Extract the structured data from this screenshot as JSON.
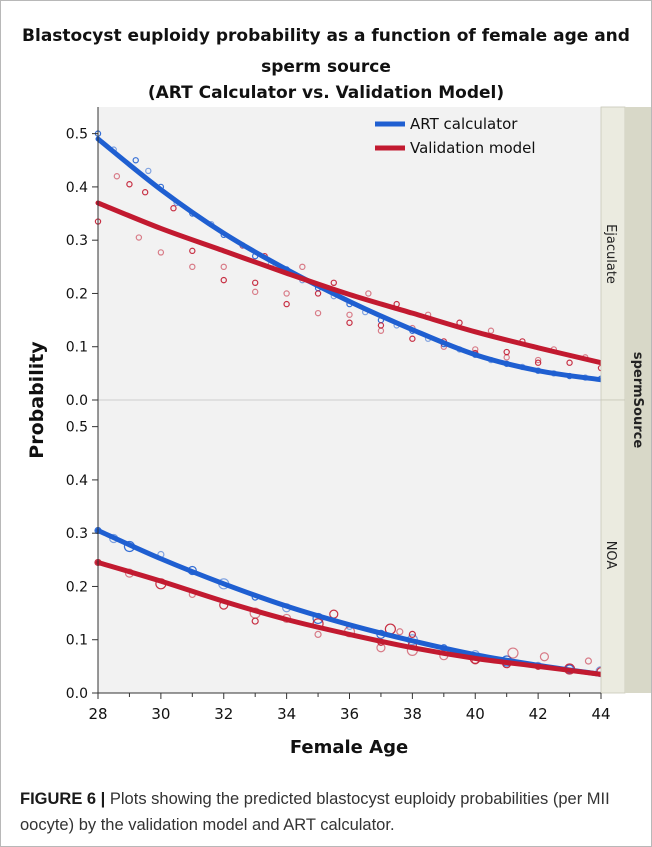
{
  "title_line1": "Blastocyst euploidy probability as a function of female age and",
  "title_line2": "sperm source",
  "title_line3": "(ART Calculator vs. Validation Model)",
  "caption_label": "FIGURE 6 |",
  "caption_text": " Plots showing the predicted blastocyst euploidy probabilities (per MII oocyte) by the validation model and ART calculator.",
  "colors": {
    "art": "#1f5fd1",
    "validation": "#c21a30",
    "panel_bg": "#f2f2f2",
    "strip_bg": "#ebebe0",
    "strip_title_bg": "#d8d8c8"
  },
  "chart_data": {
    "type": "scatter",
    "title": "Blastocyst euploidy probability as a function of female age and sperm source (ART Calculator vs. Validation Model)",
    "xlabel": "Female Age",
    "ylabel": "Probability",
    "xlim": [
      28,
      44
    ],
    "x_ticks": [
      28,
      30,
      32,
      34,
      36,
      38,
      40,
      42,
      44
    ],
    "y_ticks": [
      "0.0",
      "0.1",
      "0.2",
      "0.3",
      "0.4",
      "0.5"
    ],
    "facet_title": "spermSource",
    "legend": {
      "position": "top-right",
      "entries": [
        "ART calculator",
        "Validation model"
      ]
    },
    "panels": [
      {
        "facet": "Ejaculate",
        "ylim": [
          0,
          0.55
        ],
        "series": [
          {
            "name": "ART calculator",
            "color": "#1f5fd1",
            "curve": [
              [
                28,
                0.49
              ],
              [
                30,
                0.395
              ],
              [
                32,
                0.313
              ],
              [
                34,
                0.245
              ],
              [
                36,
                0.185
              ],
              [
                38,
                0.132
              ],
              [
                40,
                0.085
              ],
              [
                42,
                0.055
              ],
              [
                44,
                0.038
              ]
            ],
            "points": [
              [
                28,
                0.5
              ],
              [
                28.5,
                0.47
              ],
              [
                29.2,
                0.45
              ],
              [
                29.6,
                0.43
              ],
              [
                30,
                0.4
              ],
              [
                30.5,
                0.37
              ],
              [
                31,
                0.35
              ],
              [
                31.6,
                0.33
              ],
              [
                32,
                0.31
              ],
              [
                32.6,
                0.29
              ],
              [
                33,
                0.27
              ],
              [
                33.5,
                0.255
              ],
              [
                34,
                0.245
              ],
              [
                34.5,
                0.225
              ],
              [
                35,
                0.21
              ],
              [
                35.5,
                0.195
              ],
              [
                36,
                0.18
              ],
              [
                36.5,
                0.165
              ],
              [
                37,
                0.15
              ],
              [
                37.5,
                0.14
              ],
              [
                38,
                0.13
              ],
              [
                38.5,
                0.115
              ],
              [
                39,
                0.105
              ],
              [
                39.5,
                0.095
              ],
              [
                40,
                0.085
              ],
              [
                40.5,
                0.075
              ],
              [
                41,
                0.068
              ],
              [
                41.5,
                0.062
              ],
              [
                42,
                0.055
              ],
              [
                42.5,
                0.05
              ],
              [
                43,
                0.045
              ],
              [
                43.5,
                0.042
              ],
              [
                44,
                0.04
              ]
            ]
          },
          {
            "name": "Validation model",
            "color": "#c21a30",
            "curve": [
              [
                28,
                0.37
              ],
              [
                30,
                0.322
              ],
              [
                32,
                0.28
              ],
              [
                34,
                0.238
              ],
              [
                36,
                0.198
              ],
              [
                38,
                0.163
              ],
              [
                40,
                0.128
              ],
              [
                42,
                0.098
              ],
              [
                44,
                0.07
              ]
            ],
            "points": [
              [
                28,
                0.335
              ],
              [
                28.6,
                0.42
              ],
              [
                29,
                0.405
              ],
              [
                29.3,
                0.305
              ],
              [
                29.5,
                0.39
              ],
              [
                30,
                0.277
              ],
              [
                30.4,
                0.36
              ],
              [
                31,
                0.25
              ],
              [
                31,
                0.28
              ],
              [
                32,
                0.25
              ],
              [
                32,
                0.225
              ],
              [
                32.6,
                0.29
              ],
              [
                33,
                0.22
              ],
              [
                33,
                0.203
              ],
              [
                33.3,
                0.27
              ],
              [
                34,
                0.2
              ],
              [
                34,
                0.18
              ],
              [
                34.5,
                0.25
              ],
              [
                35,
                0.2
              ],
              [
                35,
                0.163
              ],
              [
                35.5,
                0.22
              ],
              [
                36,
                0.16
              ],
              [
                36,
                0.145
              ],
              [
                36.6,
                0.2
              ],
              [
                37,
                0.14
              ],
              [
                37,
                0.13
              ],
              [
                37.5,
                0.18
              ],
              [
                38,
                0.135
              ],
              [
                38,
                0.115
              ],
              [
                38.5,
                0.16
              ],
              [
                39,
                0.11
              ],
              [
                39,
                0.1
              ],
              [
                39.5,
                0.145
              ],
              [
                40,
                0.095
              ],
              [
                40,
                0.088
              ],
              [
                40.5,
                0.13
              ],
              [
                41,
                0.09
              ],
              [
                41,
                0.08
              ],
              [
                41.5,
                0.11
              ],
              [
                42,
                0.075
              ],
              [
                42,
                0.07
              ],
              [
                42.5,
                0.095
              ],
              [
                43,
                0.07
              ],
              [
                43.5,
                0.08
              ],
              [
                44,
                0.06
              ]
            ]
          }
        ]
      },
      {
        "facet": "NOA",
        "ylim": [
          0,
          0.55
        ],
        "series": [
          {
            "name": "ART calculator",
            "color": "#1f5fd1",
            "curve": [
              [
                28,
                0.305
              ],
              [
                30,
                0.252
              ],
              [
                32,
                0.205
              ],
              [
                34,
                0.163
              ],
              [
                36,
                0.128
              ],
              [
                38,
                0.098
              ],
              [
                40,
                0.072
              ],
              [
                42,
                0.052
              ],
              [
                44,
                0.035
              ]
            ],
            "points": [
              [
                28,
                0.305
              ],
              [
                28.5,
                0.29
              ],
              [
                29,
                0.275
              ],
              [
                30,
                0.26
              ],
              [
                31,
                0.23
              ],
              [
                32,
                0.205
              ],
              [
                33,
                0.18
              ],
              [
                34,
                0.16
              ],
              [
                35,
                0.14
              ],
              [
                36,
                0.125
              ],
              [
                37,
                0.11
              ],
              [
                38,
                0.1
              ],
              [
                39,
                0.085
              ],
              [
                40,
                0.072
              ],
              [
                41,
                0.06
              ],
              [
                42,
                0.052
              ],
              [
                43,
                0.045
              ],
              [
                44,
                0.04
              ]
            ]
          },
          {
            "name": "Validation model",
            "color": "#c21a30",
            "curve": [
              [
                28,
                0.245
              ],
              [
                30,
                0.21
              ],
              [
                32,
                0.172
              ],
              [
                34,
                0.138
              ],
              [
                36,
                0.11
              ],
              [
                38,
                0.085
              ],
              [
                40,
                0.065
              ],
              [
                42,
                0.05
              ],
              [
                44,
                0.035
              ]
            ],
            "points": [
              [
                28,
                0.245
              ],
              [
                29,
                0.225
              ],
              [
                30,
                0.205
              ],
              [
                31,
                0.185
              ],
              [
                32,
                0.165
              ],
              [
                33,
                0.15
              ],
              [
                33,
                0.135
              ],
              [
                34,
                0.14
              ],
              [
                35,
                0.13
              ],
              [
                35,
                0.11
              ],
              [
                35.5,
                0.148
              ],
              [
                36,
                0.115
              ],
              [
                37,
                0.095
              ],
              [
                37,
                0.085
              ],
              [
                37.3,
                0.12
              ],
              [
                37.6,
                0.115
              ],
              [
                38,
                0.09
              ],
              [
                38,
                0.08
              ],
              [
                38,
                0.11
              ],
              [
                39,
                0.07
              ],
              [
                40,
                0.065
              ],
              [
                40,
                0.06
              ],
              [
                41,
                0.055
              ],
              [
                41.2,
                0.075
              ],
              [
                42,
                0.05
              ],
              [
                42.2,
                0.068
              ],
              [
                43,
                0.045
              ],
              [
                43.6,
                0.06
              ],
              [
                44,
                0.04
              ]
            ]
          }
        ]
      }
    ]
  }
}
